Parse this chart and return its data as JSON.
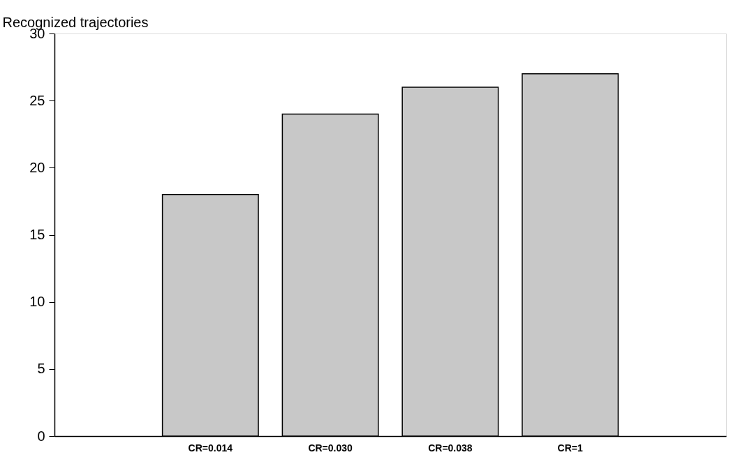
{
  "chart_data": {
    "type": "bar",
    "ylabel": "Recognized trajectories",
    "categories": [
      "CR=0.014",
      "CR=0.030",
      "CR=0.038",
      "CR=1"
    ],
    "values": [
      18,
      24,
      26,
      27
    ],
    "color": "#c8c8c8",
    "ylim": [
      0,
      30
    ],
    "yticks": [
      0,
      5,
      10,
      15,
      20,
      25,
      30
    ],
    "grid": false
  }
}
